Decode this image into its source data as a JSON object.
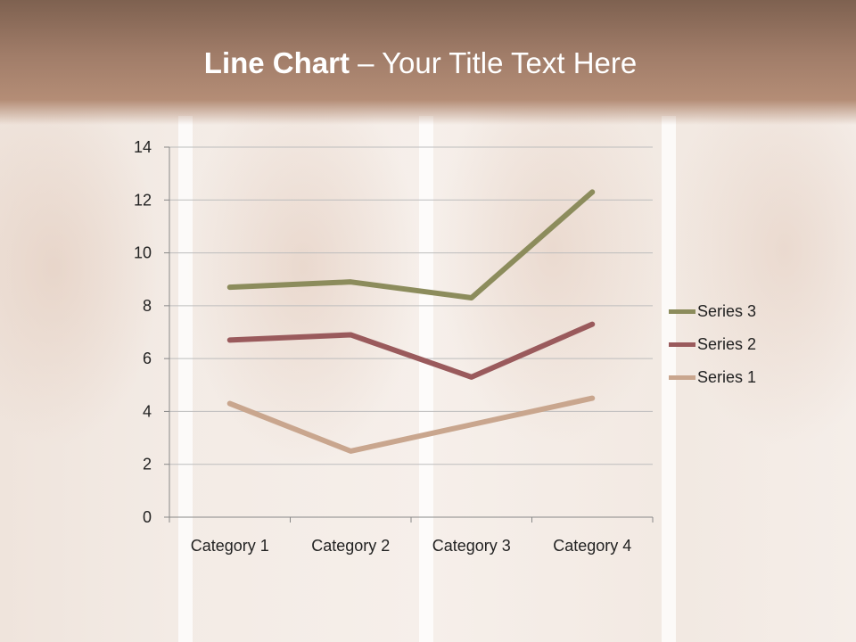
{
  "slide": {
    "title_bold": "Line Chart",
    "title_rest": " – Your Title Text Here"
  },
  "chart_data": {
    "type": "line",
    "stacked": true,
    "categories": [
      "Category 1",
      "Category 2",
      "Category 3",
      "Category 4"
    ],
    "series": [
      {
        "name": "Series 1",
        "values": [
          4.3,
          2.5,
          3.5,
          4.5
        ],
        "color": "#c9a68e"
      },
      {
        "name": "Series 2",
        "values": [
          2.4,
          4.4,
          1.8,
          2.8
        ],
        "color": "#9a5a5c"
      },
      {
        "name": "Series 3",
        "values": [
          2,
          2,
          3,
          5
        ],
        "color": "#8c8c5c"
      }
    ],
    "ylim": [
      0,
      14
    ],
    "yticks": [
      "0",
      "2",
      "4",
      "6",
      "8",
      "10",
      "12",
      "14"
    ],
    "grid": true,
    "legend": "right"
  }
}
